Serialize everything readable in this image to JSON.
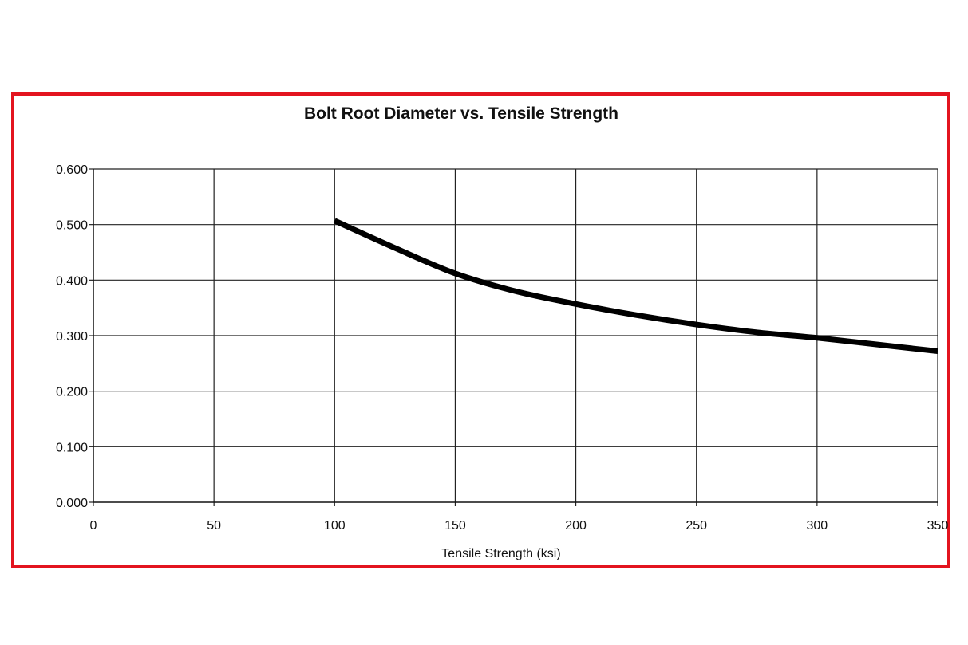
{
  "frame_color": "#e3141f",
  "chart_data": {
    "type": "line",
    "title": "Bolt Root Diameter vs. Tensile Strength",
    "xlabel": "Tensile Strength (ksi)",
    "ylabel": "",
    "xlim": [
      0,
      350
    ],
    "ylim": [
      0,
      0.6
    ],
    "grid": true,
    "x_ticks": [
      "0",
      "50",
      "100",
      "150",
      "200",
      "250",
      "300",
      "350"
    ],
    "y_ticks": [
      "0.000",
      "0.100",
      "0.200",
      "0.300",
      "0.400",
      "0.500",
      "0.600"
    ],
    "series": [
      {
        "color": "#000000",
        "x": [
          100,
          125,
          150,
          175,
          200,
          225,
          250,
          275,
          300,
          325,
          350
        ],
        "y": [
          0.507,
          0.458,
          0.412,
          0.38,
          0.357,
          0.337,
          0.32,
          0.306,
          0.296,
          0.284,
          0.272
        ]
      }
    ]
  }
}
